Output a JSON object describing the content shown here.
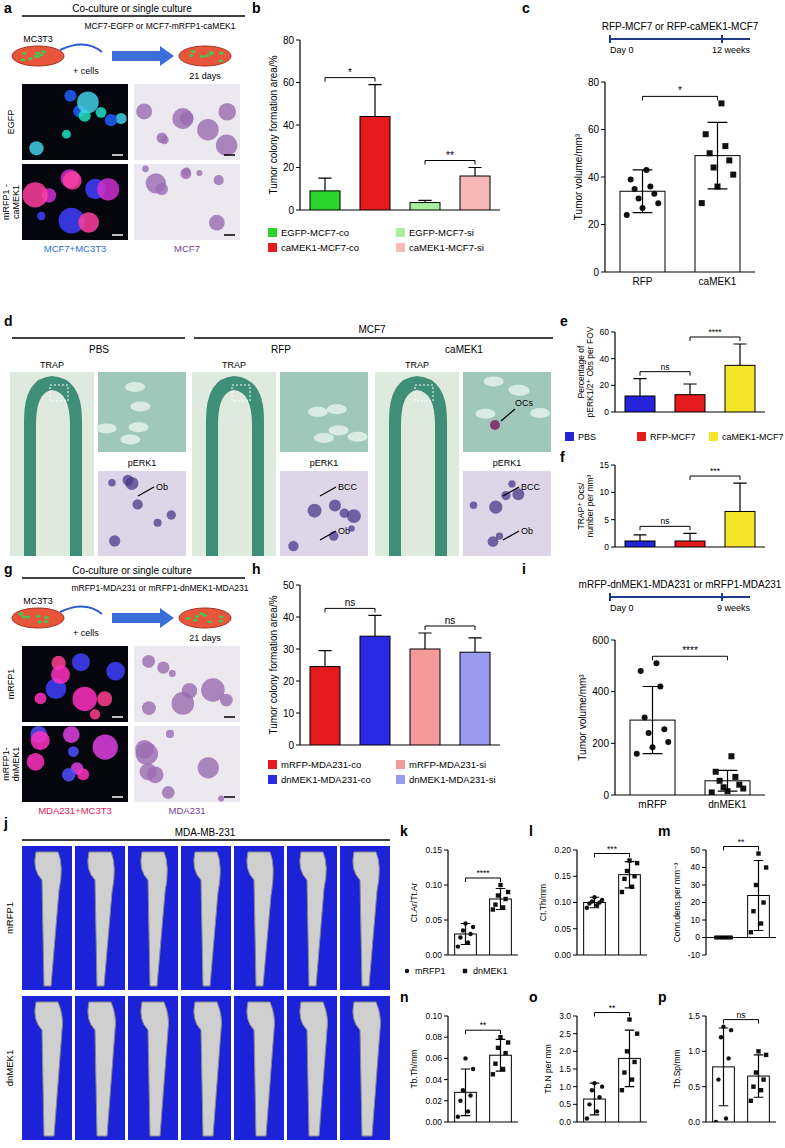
{
  "chart_data": [
    {
      "type": "bar",
      "ylabel": "Tumor colony formation area/%",
      "ylim": [
        0,
        80
      ],
      "yticks": [
        0,
        20,
        40,
        60,
        80
      ],
      "tick_labels": "y",
      "legend": "bottom",
      "series": [
        {
          "name": "EGFP-MCF7-co",
          "color": "#2bd52b",
          "value": 9,
          "error": 6
        },
        {
          "name": "caMEK1-MCF7-co",
          "color": "#e41a1c",
          "value": 44,
          "error": 15
        },
        {
          "name": "EGFP-MCF7-si",
          "color": "#a8f0a0",
          "value": 3.5,
          "error": 1
        },
        {
          "name": "caMEK1-MCF7-si",
          "color": "#f7b8b8",
          "value": 16,
          "error": 4
        }
      ],
      "annotations": [
        {
          "text": "*",
          "between": [
            0,
            1
          ]
        },
        {
          "text": "**",
          "between": [
            2,
            3
          ]
        }
      ]
    },
    {
      "type": "bar",
      "ylabel": "Tumor volume/mm³",
      "ylim": [
        0,
        80
      ],
      "yticks": [
        0,
        20,
        40,
        60,
        80
      ],
      "timeline": {
        "title": "RFP-MCF7 or RFP-caMEK1-MCF7",
        "start": "Day 0",
        "end": "12 weeks"
      },
      "series": [
        {
          "name": "RFP",
          "color": "#ffffff",
          "marker": "circle",
          "value": 34,
          "error": 9,
          "points": [
            24,
            27,
            29,
            31,
            33,
            35,
            36,
            39,
            43
          ]
        },
        {
          "name": "caMEK1",
          "color": "#ffffff",
          "marker": "square",
          "value": 49,
          "error": 14,
          "points": [
            29,
            36,
            41,
            44,
            47,
            50,
            53,
            58,
            71
          ]
        }
      ],
      "annotations": [
        {
          "text": "*",
          "between": [
            0,
            1
          ]
        }
      ]
    },
    {
      "type": "bar",
      "ylabel": [
        "Percentage of",
        "pERK1/2⁺ Obs per FOV"
      ],
      "ylim": [
        0,
        60
      ],
      "yticks": [
        0,
        20,
        40,
        60
      ],
      "tick_labels": "y",
      "legend": "bottom",
      "series": [
        {
          "name": "PBS",
          "color": "#2323d9",
          "value": 12,
          "error": 13
        },
        {
          "name": "RFP-MCF7",
          "color": "#e41a1c",
          "value": 13,
          "error": 8
        },
        {
          "name": "caMEK1-MCF7",
          "color": "#f2e52a",
          "value": 35,
          "error": 16
        }
      ],
      "annotations": [
        {
          "text": "ns",
          "between": [
            0,
            1
          ]
        },
        {
          "text": "****",
          "between": [
            1,
            2
          ]
        }
      ]
    },
    {
      "type": "bar",
      "ylabel": [
        "TRAP⁺ Ocs/",
        "number per mm³"
      ],
      "ylim": [
        0,
        15
      ],
      "yticks": [
        0,
        5,
        10,
        15
      ],
      "tick_labels": "y",
      "series": [
        {
          "color": "#2323d9",
          "value": 1.1,
          "error": 1.1
        },
        {
          "color": "#e41a1c",
          "value": 1.1,
          "error": 1.4
        },
        {
          "color": "#f2e52a",
          "value": 6.5,
          "error": 5.2
        }
      ],
      "annotations": [
        {
          "text": "ns",
          "between": [
            0,
            1
          ]
        },
        {
          "text": "***",
          "between": [
            1,
            2
          ]
        }
      ]
    },
    {
      "type": "bar",
      "ylabel": "Tumor colony formation area/%",
      "ylim": [
        0,
        50
      ],
      "yticks": [
        0,
        10,
        20,
        30,
        40,
        50
      ],
      "tick_labels": "y",
      "legend": "bottom",
      "series": [
        {
          "name": "mRFP-MDA231-co",
          "color": "#e41a1c",
          "value": 24.5,
          "error": 5
        },
        {
          "name": "dnMEK1-MDA231-co",
          "color": "#2a2ae6",
          "value": 34,
          "error": 6.5
        },
        {
          "name": "mRFP-MDA231-si",
          "color": "#f59a9a",
          "value": 30,
          "error": 5
        },
        {
          "name": "dnMEK1-MDA231-si",
          "color": "#9a9af0",
          "value": 29,
          "error": 4.5
        }
      ],
      "annotations": [
        {
          "text": "ns",
          "between": [
            0,
            1
          ]
        },
        {
          "text": "ns",
          "between": [
            2,
            3
          ]
        }
      ]
    },
    {
      "type": "bar",
      "ylabel": "Tumor volume/mm³",
      "ylim": [
        0,
        600
      ],
      "yticks": [
        0,
        200,
        400,
        600
      ],
      "timeline": {
        "title": "mRFP-dnMEK1-MDA231 or mRFP1-MDA231",
        "start": "Day 0",
        "end": "9 weeks"
      },
      "series": [
        {
          "name": "mRFP",
          "color": "#ffffff",
          "marker": "circle",
          "value": 290,
          "error": 130,
          "points": [
            160,
            185,
            205,
            240,
            255,
            300,
            420,
            480,
            510
          ]
        },
        {
          "name": "dnMEK1",
          "color": "#ffffff",
          "marker": "square",
          "value": 55,
          "error": 40,
          "points": [
            10,
            15,
            25,
            30,
            40,
            55,
            70,
            90,
            150
          ]
        }
      ],
      "annotations": [
        {
          "text": "****",
          "between": [
            0,
            1
          ]
        }
      ]
    },
    {
      "type": "bar",
      "ylabel": "Ct.Ar/Tt.Ar",
      "ylim": [
        0,
        0.15
      ],
      "yticks": [
        {
          "value": 0,
          "label": "0.00"
        },
        0.05,
        {
          "value": 0.1,
          "label": "0.10"
        },
        0.15
      ],
      "tick_labels": "y",
      "legend": "bottom",
      "series": [
        {
          "name": "mRFP1",
          "color": "#ffffff",
          "marker": "circle",
          "value": 0.03,
          "error": 0.015,
          "points": [
            0.012,
            0.018,
            0.025,
            0.03,
            0.035,
            0.04,
            0.045
          ]
        },
        {
          "name": "dnMEK1",
          "color": "#ffffff",
          "marker": "square",
          "value": 0.08,
          "error": 0.015,
          "points": [
            0.065,
            0.068,
            0.072,
            0.08,
            0.085,
            0.09,
            0.1
          ]
        }
      ],
      "annotations": [
        {
          "text": "****",
          "between": [
            0,
            1
          ]
        }
      ]
    },
    {
      "type": "bar",
      "ylabel": "Ct.Th/mm",
      "ylim": [
        0,
        0.2
      ],
      "yticks": [
        {
          "value": 0,
          "label": "0.00"
        },
        0.05,
        {
          "value": 0.1,
          "label": "0.10"
        },
        0.15,
        {
          "value": 0.2,
          "label": "0.20"
        }
      ],
      "tick_labels": "y",
      "series": [
        {
          "color": "#ffffff",
          "marker": "circle",
          "value": 0.1,
          "error": 0.01,
          "points": [
            0.09,
            0.095,
            0.098,
            0.1,
            0.102,
            0.105,
            0.11
          ]
        },
        {
          "color": "#ffffff",
          "marker": "square",
          "value": 0.153,
          "error": 0.025,
          "points": [
            0.12,
            0.13,
            0.145,
            0.15,
            0.16,
            0.175,
            0.18
          ]
        }
      ],
      "annotations": [
        {
          "text": "***",
          "between": [
            0,
            1
          ]
        }
      ]
    },
    {
      "type": "bar",
      "ylabel": "Conn.dens.per mm⁻³",
      "ylim": [
        -10,
        50
      ],
      "yticks": [
        -10,
        0,
        10,
        20,
        30,
        40,
        50
      ],
      "tick_labels": "y",
      "series": [
        {
          "color": "#ffffff",
          "marker": "circle",
          "value": 0,
          "error": 0.5,
          "points": [
            0,
            0,
            0,
            0,
            0,
            0,
            0
          ]
        },
        {
          "color": "#ffffff",
          "marker": "square",
          "value": 24,
          "error": 20,
          "points": [
            3,
            8,
            15,
            20,
            30,
            40,
            48
          ]
        }
      ],
      "annotations": [
        {
          "text": "**",
          "between": [
            0,
            1
          ]
        }
      ]
    },
    {
      "type": "bar",
      "ylabel": "Tb.Th/mm",
      "ylim": [
        0,
        0.1
      ],
      "yticks": [
        {
          "value": 0,
          "label": "0.00"
        },
        0.02,
        0.04,
        0.06,
        0.08,
        {
          "value": 0.1,
          "label": "0.10"
        }
      ],
      "tick_labels": "y",
      "series": [
        {
          "color": "#ffffff",
          "marker": "circle",
          "value": 0.028,
          "error": 0.022,
          "points": [
            0.005,
            0.01,
            0.02,
            0.025,
            0.03,
            0.05,
            0.06
          ]
        },
        {
          "color": "#ffffff",
          "marker": "square",
          "value": 0.063,
          "error": 0.015,
          "points": [
            0.045,
            0.05,
            0.055,
            0.065,
            0.07,
            0.075,
            0.08
          ]
        }
      ],
      "annotations": [
        {
          "text": "**",
          "between": [
            0,
            1
          ]
        }
      ]
    },
    {
      "type": "bar",
      "ylabel": "Tb.N per mm",
      "ylim": [
        0,
        3
      ],
      "yticks": [
        {
          "value": 0,
          "label": "0.0"
        },
        0.5,
        {
          "value": 1,
          "label": "1.0"
        },
        1.5,
        {
          "value": 2,
          "label": "2.0"
        },
        2.5,
        {
          "value": 3,
          "label": "3.0"
        }
      ],
      "tick_labels": "y",
      "series": [
        {
          "color": "#ffffff",
          "marker": "circle",
          "value": 0.65,
          "error": 0.45,
          "points": [
            0.1,
            0.3,
            0.5,
            0.7,
            0.9,
            1.0,
            1.1
          ]
        },
        {
          "color": "#ffffff",
          "marker": "square",
          "value": 1.8,
          "error": 0.8,
          "points": [
            0.9,
            1.2,
            1.4,
            1.7,
            2.0,
            2.5,
            2.9
          ]
        }
      ],
      "annotations": [
        {
          "text": "**",
          "between": [
            0,
            1
          ]
        }
      ]
    },
    {
      "type": "bar",
      "ylabel": "Tb.Sp/mm",
      "ylim": [
        0,
        1.5
      ],
      "yticks": [
        {
          "value": 0,
          "label": "0.0"
        },
        0.5,
        {
          "value": 1,
          "label": "1.0"
        },
        1.5
      ],
      "tick_labels": "y",
      "series": [
        {
          "color": "#ffffff",
          "marker": "circle",
          "value": 0.78,
          "error": 0.55,
          "points": [
            0.0,
            0.05,
            0.6,
            0.9,
            1.2,
            1.3,
            1.35
          ]
        },
        {
          "color": "#ffffff",
          "marker": "square",
          "value": 0.65,
          "error": 0.3,
          "points": [
            0.3,
            0.45,
            0.5,
            0.6,
            0.7,
            0.95,
            1.0
          ]
        }
      ],
      "annotations": [
        {
          "text": "ns",
          "between": [
            0,
            1
          ]
        }
      ]
    }
  ],
  "figure": {
    "panel_letters": [
      "a",
      "b",
      "c",
      "d",
      "e",
      "f",
      "g",
      "h",
      "i",
      "j",
      "k",
      "l",
      "m",
      "n",
      "o",
      "p"
    ],
    "panel_a": {
      "header": "Co-culture or single culture",
      "feeder": "MC3T3",
      "cells": "MCF7-EGFP or MCF7-mRFP1-caMEK1",
      "step": "+ cells",
      "duration": "21 days",
      "rows": [
        [
          "EGFP"
        ],
        [
          "mRFP1 -",
          "caMEK1"
        ]
      ],
      "columns": [
        "MCF7+MC3T3",
        "MCF7"
      ]
    },
    "panel_d": {
      "columns": [
        "PBS",
        "MCF7"
      ],
      "subcolumns": [
        "RFP",
        "caMEK1"
      ],
      "images": [
        {
          "top": "TRAP",
          "bottom": "pERK1",
          "bottom_labels": [
            "Ob"
          ]
        },
        {
          "top": "TRAP",
          "bottom": "pERK1",
          "bottom_labels": [
            "BCC",
            "Ob"
          ]
        },
        {
          "top": "TRAP",
          "bottom": "pERK1",
          "top_labels": [
            "OCs"
          ],
          "bottom_labels": [
            "BCC",
            "Ob"
          ]
        }
      ]
    },
    "panel_g": {
      "header": "Co-culture or single culture",
      "feeder": "MC3T3",
      "cells": "mRFP1-MDA231 or mRFP1-dnMEK1-MDA231",
      "step": "+ cells",
      "duration": "21 days",
      "rows": [
        [
          "mRFP1"
        ],
        [
          "mRFP1-",
          "dnMEK1"
        ]
      ],
      "columns": [
        "MDA231+MC3T3",
        "MDA231"
      ]
    },
    "panel_j": {
      "title": "MDA-MB-231",
      "rows": [
        "mRFP1",
        "dnMEK1"
      ]
    }
  }
}
